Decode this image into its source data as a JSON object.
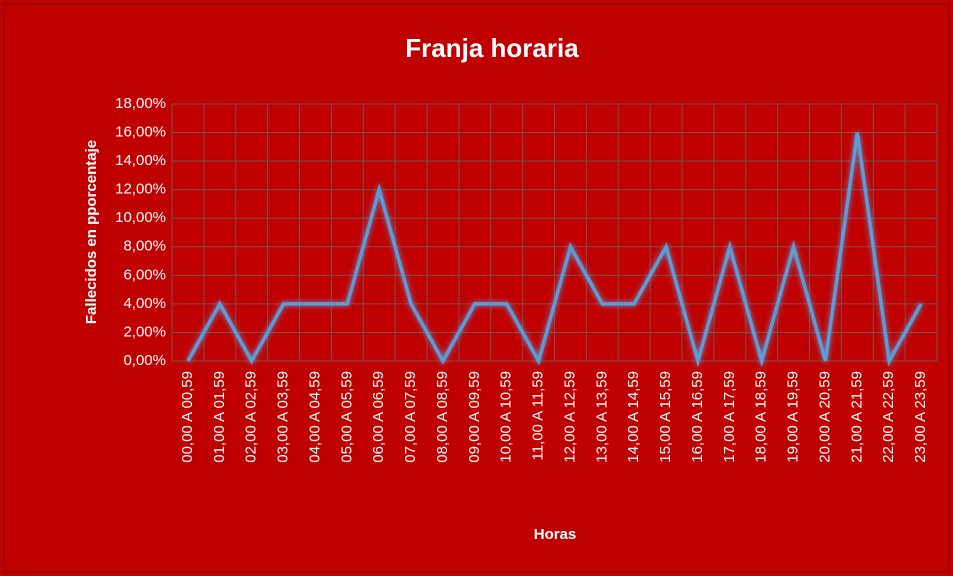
{
  "chart_data": {
    "type": "line",
    "title": "Franja horaria",
    "x_label": "Horas",
    "y_label": "Fallecidos en pporcentaje",
    "categories": [
      "00,00 A 00,59",
      "01,00 A 01,59",
      "02,00 A 02,59",
      "03,00 A 03,59",
      "04,00 A 04,59",
      "05,00 A 05,59",
      "06,00 A 06,59",
      "07,00 A 07,59",
      "08,00 A 08,59",
      "09,00 A 09,59",
      "10,00 A 10,59",
      "11,00 A 11,59",
      "12,00 A 12,59",
      "13,00 A 13,59",
      "14,00 A 14,59",
      "15,00 A 15,59",
      "16,00 A 16,59",
      "17,00 A 17,59",
      "18,00 A 18,59",
      "19,00 A 19,59",
      "20,00 A 20,59",
      "21,00 A 21,59",
      "22,00 A 22,59",
      "23,00 A 23,59"
    ],
    "values": [
      0,
      4,
      0,
      4,
      4,
      4,
      12,
      4,
      0,
      4,
      4,
      0,
      8,
      4,
      4,
      8,
      0,
      8,
      0,
      8,
      0,
      16,
      0,
      4
    ],
    "color": "#5b9bd5",
    "ylim": [
      0,
      18
    ],
    "yticks": [
      {
        "value": 0,
        "label": "0,00%"
      },
      {
        "value": 2,
        "label": "2,00%"
      },
      {
        "value": 4,
        "label": "4,00%"
      },
      {
        "value": 6,
        "label": "6,00%"
      },
      {
        "value": 8,
        "label": "8,00%"
      },
      {
        "value": 10,
        "label": "10,00%"
      },
      {
        "value": 12,
        "label": "12,00%"
      },
      {
        "value": 14,
        "label": "14,00%"
      },
      {
        "value": 16,
        "label": "16,00%"
      },
      {
        "value": 18,
        "label": "18,00%"
      }
    ],
    "grid": true
  }
}
